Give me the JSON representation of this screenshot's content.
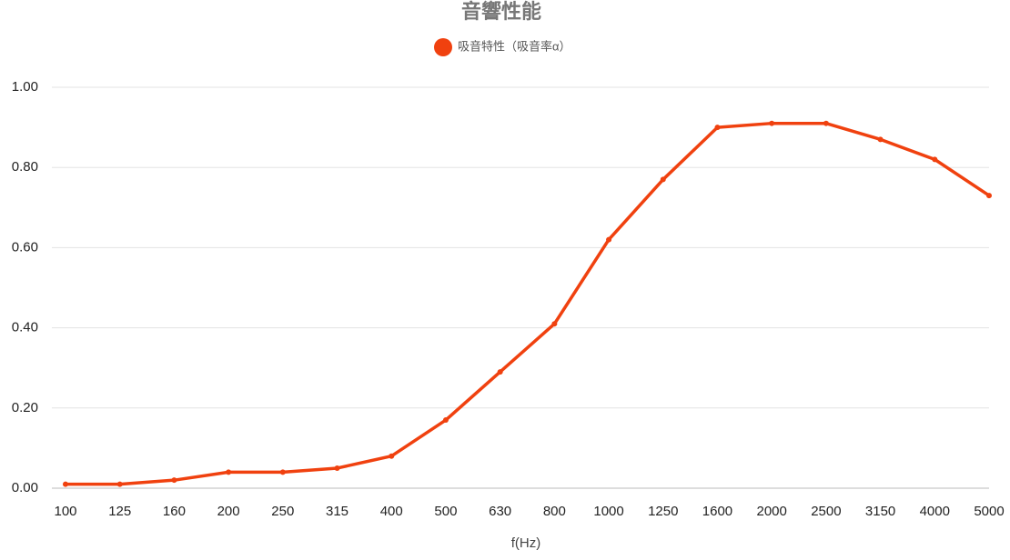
{
  "chart_data": {
    "type": "line",
    "title": "音響性能",
    "categories": [
      "100",
      "125",
      "160",
      "200",
      "250",
      "315",
      "400",
      "500",
      "630",
      "800",
      "1000",
      "1250",
      "1600",
      "2000",
      "2500",
      "3150",
      "4000",
      "5000"
    ],
    "series": [
      {
        "name": "吸音特性（吸音率α）",
        "color": "#f0410f",
        "values": [
          0.01,
          0.01,
          0.02,
          0.04,
          0.04,
          0.05,
          0.08,
          0.17,
          0.29,
          0.41,
          0.62,
          0.77,
          0.9,
          0.91,
          0.91,
          0.87,
          0.82,
          0.73
        ]
      }
    ],
    "x_label": "f(Hz)",
    "ylim": [
      0,
      1
    ],
    "yticks": [
      {
        "value": 0,
        "label": "0.00"
      },
      {
        "value": 0.2,
        "label": "0.20"
      },
      {
        "value": 0.4,
        "label": "0.40"
      },
      {
        "value": 0.6,
        "label": "0.60"
      },
      {
        "value": 0.8,
        "label": "0.80"
      },
      {
        "value": 1,
        "label": "1.00"
      }
    ],
    "grid": true,
    "legend": "top"
  }
}
